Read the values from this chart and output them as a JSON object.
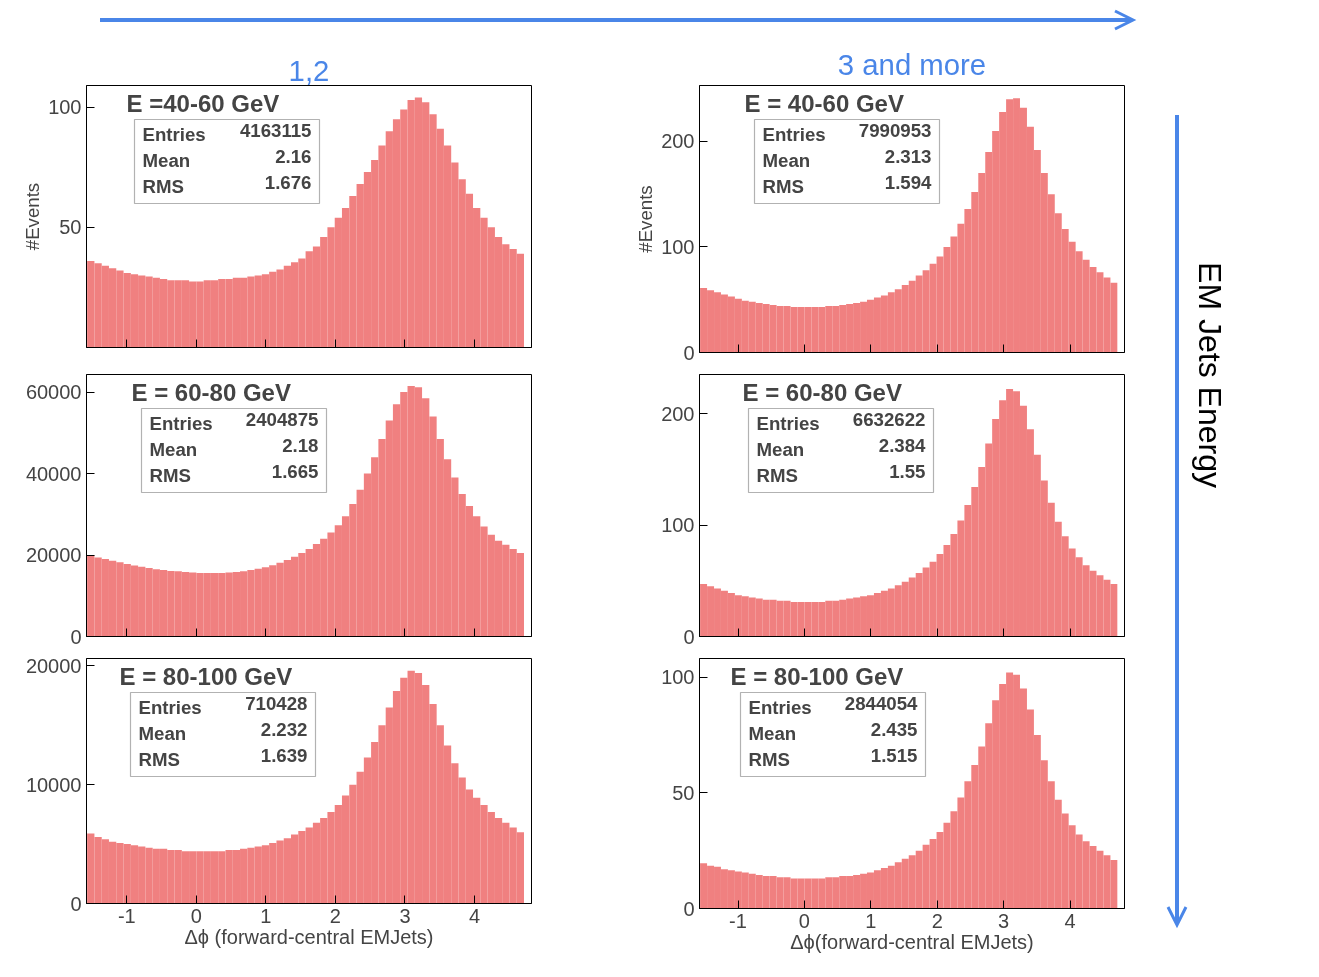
{
  "chart_data": [
    {
      "type": "histogram",
      "title": "E =40-60 GeV",
      "subtitle": "1,2",
      "ylabel": "#Events",
      "color": "#f08080",
      "bins": [
        -1.571,
        -1.466,
        -1.361,
        -1.257,
        -1.152,
        -1.047,
        -0.942,
        -0.838,
        -0.733,
        -0.628,
        -0.524,
        -0.419,
        -0.314,
        -0.209,
        -0.105,
        0,
        0.105,
        0.209,
        0.314,
        0.419,
        0.524,
        0.628,
        0.733,
        0.838,
        0.942,
        1.047,
        1.152,
        1.257,
        1.361,
        1.466,
        1.571,
        1.676,
        1.78,
        1.885,
        1.99,
        2.094,
        2.199,
        2.304,
        2.409,
        2.513,
        2.618,
        2.723,
        2.827,
        2.932,
        3.037,
        3.142,
        3.246,
        3.351,
        3.456,
        3.56,
        3.665,
        3.77,
        3.875,
        3.979,
        4.084,
        4.189,
        4.294,
        4.398,
        4.503,
        4.608,
        4.712
      ],
      "values": [
        36,
        35,
        34,
        33,
        32,
        31,
        30.5,
        30,
        29.5,
        29,
        28.5,
        28,
        28,
        28,
        27.5,
        27.5,
        28,
        28,
        28.5,
        28.5,
        29,
        29,
        29.5,
        30,
        30.5,
        31.5,
        32.5,
        34,
        35.5,
        37,
        40,
        42,
        46,
        50,
        54,
        58,
        63,
        68,
        73,
        78,
        84,
        90,
        95,
        99,
        103,
        104,
        102,
        97,
        91,
        84,
        77,
        70,
        64,
        58,
        54,
        50,
        46,
        43,
        41,
        39
      ],
      "annotations": [
        "Entries 4163115",
        "Mean 2.16",
        "RMS 1.676"
      ],
      "xlim": [
        -1.58,
        4.82
      ],
      "ylim": [
        0,
        109
      ],
      "xticks": [
        -1,
        0,
        1,
        2,
        3,
        4
      ],
      "yticks": [
        50,
        100
      ],
      "tick_labels": "y"
    },
    {
      "type": "histogram",
      "title": "E = 40-60 GeV",
      "subtitle": "3 and more",
      "ylabel": "#Events",
      "color": "#f08080",
      "bins": [
        -1.571,
        -1.466,
        -1.361,
        -1.257,
        -1.152,
        -1.047,
        -0.942,
        -0.838,
        -0.733,
        -0.628,
        -0.524,
        -0.419,
        -0.314,
        -0.209,
        -0.105,
        0,
        0.105,
        0.209,
        0.314,
        0.419,
        0.524,
        0.628,
        0.733,
        0.838,
        0.942,
        1.047,
        1.152,
        1.257,
        1.361,
        1.466,
        1.571,
        1.676,
        1.78,
        1.885,
        1.99,
        2.094,
        2.199,
        2.304,
        2.409,
        2.513,
        2.618,
        2.723,
        2.827,
        2.932,
        3.037,
        3.142,
        3.246,
        3.351,
        3.456,
        3.56,
        3.665,
        3.77,
        3.875,
        3.979,
        4.084,
        4.189,
        4.294,
        4.398,
        4.503,
        4.608,
        4.712
      ],
      "values": [
        61,
        59,
        57,
        55,
        53,
        51,
        49,
        48,
        47,
        46,
        45,
        44,
        44,
        43,
        43,
        43,
        43,
        43,
        44,
        44,
        45,
        46,
        47,
        48,
        50,
        52,
        54,
        57,
        60,
        64,
        68,
        73,
        78,
        84,
        91,
        100,
        110,
        122,
        136,
        152,
        170,
        190,
        210,
        228,
        240,
        241,
        232,
        214,
        192,
        170,
        150,
        132,
        117,
        105,
        96,
        88,
        81,
        76,
        71,
        66
      ],
      "annotations": [
        "Entries 7990953",
        "Mean 2.313",
        "RMS 1.594",
        "EM Jets Energy"
      ],
      "xlim": [
        -1.58,
        4.82
      ],
      "ylim": [
        0,
        253
      ],
      "xticks": [
        -1,
        0,
        1,
        2,
        3,
        4
      ],
      "yticks": [
        0,
        100,
        200
      ],
      "tick_labels": "y"
    },
    {
      "type": "histogram",
      "title": "E = 60-80 GeV",
      "color": "#f08080",
      "bins": [
        -1.571,
        -1.466,
        -1.361,
        -1.257,
        -1.152,
        -1.047,
        -0.942,
        -0.838,
        -0.733,
        -0.628,
        -0.524,
        -0.419,
        -0.314,
        -0.209,
        -0.105,
        0,
        0.105,
        0.209,
        0.314,
        0.419,
        0.524,
        0.628,
        0.733,
        0.838,
        0.942,
        1.047,
        1.152,
        1.257,
        1.361,
        1.466,
        1.571,
        1.676,
        1.78,
        1.885,
        1.99,
        2.094,
        2.199,
        2.304,
        2.409,
        2.513,
        2.618,
        2.723,
        2.827,
        2.932,
        3.037,
        3.142,
        3.246,
        3.351,
        3.456,
        3.56,
        3.665,
        3.77,
        3.875,
        3.979,
        4.084,
        4.189,
        4.294,
        4.398,
        4.503,
        4.608,
        4.712
      ],
      "values": [
        20000,
        19400,
        19000,
        18600,
        18200,
        17800,
        17400,
        17100,
        16800,
        16500,
        16300,
        16100,
        16000,
        15800,
        15700,
        15600,
        15600,
        15600,
        15600,
        15700,
        15800,
        16000,
        16300,
        16600,
        17000,
        17500,
        18100,
        18800,
        19600,
        20500,
        21500,
        22700,
        24000,
        25500,
        27300,
        29500,
        32500,
        36000,
        40000,
        44000,
        48500,
        53000,
        57000,
        60000,
        61500,
        61200,
        58500,
        54000,
        48500,
        43500,
        39000,
        35000,
        32000,
        29500,
        27000,
        25000,
        23500,
        22500,
        21500,
        20500
      ],
      "annotations": [
        "Entries 2404875",
        "Mean 2.18",
        "RMS 1.665"
      ],
      "xlim": [
        -1.58,
        4.82
      ],
      "ylim": [
        0,
        64300
      ],
      "xticks": [
        -1,
        0,
        1,
        2,
        3,
        4
      ],
      "yticks": [
        0,
        20000,
        40000,
        60000
      ],
      "tick_labels": "y"
    },
    {
      "type": "histogram",
      "title": "E = 60-80 GeV",
      "color": "#f08080",
      "bins": [
        -1.571,
        -1.466,
        -1.361,
        -1.257,
        -1.152,
        -1.047,
        -0.942,
        -0.838,
        -0.733,
        -0.628,
        -0.524,
        -0.419,
        -0.314,
        -0.209,
        -0.105,
        0,
        0.105,
        0.209,
        0.314,
        0.419,
        0.524,
        0.628,
        0.733,
        0.838,
        0.942,
        1.047,
        1.152,
        1.257,
        1.361,
        1.466,
        1.571,
        1.676,
        1.78,
        1.885,
        1.99,
        2.094,
        2.199,
        2.304,
        2.409,
        2.513,
        2.618,
        2.723,
        2.827,
        2.932,
        3.037,
        3.142,
        3.246,
        3.351,
        3.456,
        3.56,
        3.665,
        3.77,
        3.875,
        3.979,
        4.084,
        4.189,
        4.294,
        4.398,
        4.503,
        4.608,
        4.712
      ],
      "values": [
        47,
        45,
        43,
        41,
        39,
        37,
        36,
        35,
        34,
        33,
        33,
        32,
        32,
        31,
        31,
        31,
        31,
        31,
        32,
        32,
        33,
        34,
        35,
        36,
        37,
        39,
        41,
        43,
        46,
        49,
        53,
        57,
        62,
        67,
        74,
        82,
        92,
        104,
        118,
        134,
        152,
        173,
        195,
        212,
        222,
        220,
        207,
        186,
        163,
        140,
        120,
        103,
        90,
        79,
        71,
        64,
        59,
        55,
        51,
        47
      ],
      "annotations": [
        "Entries 6632622",
        "Mean 2.384",
        "RMS 1.55"
      ],
      "xlim": [
        -1.58,
        4.82
      ],
      "ylim": [
        0,
        235
      ],
      "xticks": [
        -1,
        0,
        1,
        2,
        3,
        4
      ],
      "yticks": [
        0,
        100,
        200
      ],
      "tick_labels": "y"
    },
    {
      "type": "histogram",
      "title": "E = 80-100 GeV",
      "xlabel": "Δϕ (forward-central EMJets)",
      "color": "#f08080",
      "bins": [
        -1.571,
        -1.466,
        -1.361,
        -1.257,
        -1.152,
        -1.047,
        -0.942,
        -0.838,
        -0.733,
        -0.628,
        -0.524,
        -0.419,
        -0.314,
        -0.209,
        -0.105,
        0,
        0.105,
        0.209,
        0.314,
        0.419,
        0.524,
        0.628,
        0.733,
        0.838,
        0.942,
        1.047,
        1.152,
        1.257,
        1.361,
        1.466,
        1.571,
        1.676,
        1.78,
        1.885,
        1.99,
        2.094,
        2.199,
        2.304,
        2.409,
        2.513,
        2.618,
        2.723,
        2.827,
        2.932,
        3.037,
        3.142,
        3.246,
        3.351,
        3.456,
        3.56,
        3.665,
        3.77,
        3.875,
        3.979,
        4.084,
        4.189,
        4.294,
        4.398,
        4.503,
        4.608,
        4.712
      ],
      "values": [
        5900,
        5600,
        5400,
        5200,
        5100,
        5000,
        4900,
        4800,
        4700,
        4600,
        4600,
        4500,
        4500,
        4400,
        4400,
        4400,
        4400,
        4400,
        4400,
        4500,
        4500,
        4600,
        4700,
        4800,
        4900,
        5100,
        5300,
        5500,
        5800,
        6100,
        6400,
        6800,
        7200,
        7700,
        8300,
        9100,
        10000,
        11100,
        12300,
        13600,
        15000,
        16500,
        17900,
        19000,
        19600,
        19400,
        18400,
        16800,
        15000,
        13300,
        11800,
        10600,
        9600,
        8900,
        8300,
        7700,
        7200,
        6800,
        6400,
        6000
      ],
      "annotations": [
        "Entries 710428",
        "Mean 2.232",
        "RMS 1.639"
      ],
      "xlim": [
        -1.58,
        4.82
      ],
      "ylim": [
        0,
        20630
      ],
      "xticks": [
        -1,
        0,
        1,
        2,
        3,
        4
      ],
      "yticks": [
        0,
        10000,
        20000
      ]
    },
    {
      "type": "histogram",
      "title": "E = 80-100 GeV",
      "xlabel": "Δϕ(forward-central EMJets)",
      "color": "#f08080",
      "bins": [
        -1.571,
        -1.466,
        -1.361,
        -1.257,
        -1.152,
        -1.047,
        -0.942,
        -0.838,
        -0.733,
        -0.628,
        -0.524,
        -0.419,
        -0.314,
        -0.209,
        -0.105,
        0,
        0.105,
        0.209,
        0.314,
        0.419,
        0.524,
        0.628,
        0.733,
        0.838,
        0.942,
        1.047,
        1.152,
        1.257,
        1.361,
        1.466,
        1.571,
        1.676,
        1.78,
        1.885,
        1.99,
        2.094,
        2.199,
        2.304,
        2.409,
        2.513,
        2.618,
        2.723,
        2.827,
        2.932,
        3.037,
        3.142,
        3.246,
        3.351,
        3.456,
        3.56,
        3.665,
        3.77,
        3.875,
        3.979,
        4.084,
        4.189,
        4.294,
        4.398,
        4.503,
        4.608,
        4.712
      ],
      "values": [
        19.5,
        18.5,
        18,
        17,
        16.5,
        16,
        15.5,
        15,
        14.5,
        14,
        14,
        13.5,
        13.5,
        13,
        13,
        13,
        13,
        13,
        13.5,
        13.5,
        14,
        14,
        14.5,
        15,
        15.5,
        16.5,
        17.5,
        18.5,
        20,
        21.5,
        23,
        25,
        27.5,
        30,
        33,
        37,
        42,
        48,
        55,
        62,
        70,
        80,
        90,
        97,
        102,
        101,
        95,
        86,
        75,
        64,
        55,
        47,
        41,
        36,
        32,
        29,
        27,
        25,
        23,
        21
      ],
      "annotations": [
        "Entries 2844054",
        "Mean 2.435",
        "RMS 1.515"
      ],
      "xlim": [
        -1.58,
        4.82
      ],
      "ylim": [
        0,
        108
      ],
      "xticks": [
        -1,
        0,
        1,
        2,
        3,
        4
      ],
      "yticks": [
        0,
        50,
        100
      ]
    }
  ]
}
